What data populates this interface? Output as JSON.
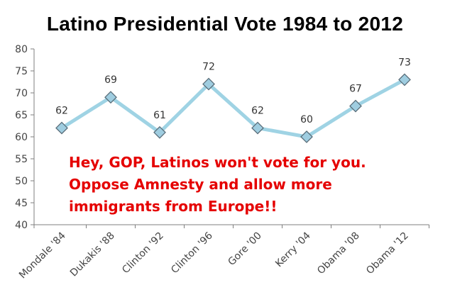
{
  "chart_data": {
    "type": "line",
    "title": "Latino Presidential Vote 1984 to 2012",
    "categories": [
      "Mondale '84",
      "Dukakis '88",
      "Clinton '92",
      "Clinton '96",
      "Gore '00",
      "Kerry '04",
      "Obama '08",
      "Obama '12"
    ],
    "series": [
      {
        "values": [
          62,
          69,
          61,
          72,
          62,
          60,
          67,
          73
        ]
      }
    ],
    "data_labels": [
      "62",
      "69",
      "61",
      "72",
      "62",
      "60",
      "67",
      "73"
    ],
    "ylim": [
      40,
      80
    ],
    "yticks": [
      40,
      45,
      50,
      55,
      60,
      65,
      70,
      75,
      80
    ],
    "grid": false,
    "line_color": "#9fd3e4",
    "marker_fill": "#9fcde0",
    "marker_stroke": "#5a6e7a",
    "annotation": {
      "lines": [
        "Hey, GOP, Latinos won't vote for you.",
        "Oppose Amnesty and allow more",
        "immigrants from Europe!!"
      ],
      "color": "#e50000"
    }
  }
}
